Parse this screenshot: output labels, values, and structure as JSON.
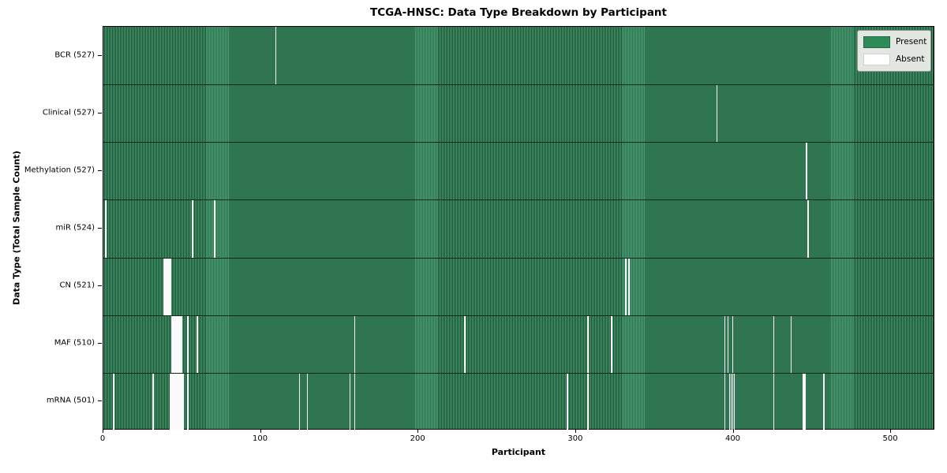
{
  "title": "TCGA-HNSC: Data Type Breakdown by Participant",
  "xlabel": "Participant",
  "ylabel": "Data Type (Total Sample Count)",
  "legend": {
    "present_label": "Present",
    "absent_label": "Absent"
  },
  "colors": {
    "present": "#2E8B57",
    "present_stripe_light": "#4A9A71",
    "present_stripe_dark": "#175031",
    "absent": "#FBFBFB",
    "row_separator": "#0B2A1A",
    "legend_bg": "#E2E7E1",
    "legend_border": "#8F948F",
    "axis": "#000000"
  },
  "chart_data": {
    "type": "heatmap",
    "title": "TCGA-HNSC: Data Type Breakdown by Participant",
    "xlabel": "Participant",
    "ylabel": "Data Type (Total Sample Count)",
    "legend_entries": [
      "Present",
      "Absent"
    ],
    "legend_position": "upper right",
    "grid": false,
    "n_participants": 528,
    "x_range": [
      0,
      528
    ],
    "x_ticks": [
      0,
      100,
      200,
      300,
      400,
      500
    ],
    "rows": [
      {
        "data_type": "BCR",
        "label": "BCR (527)",
        "sample_count": 527,
        "absent_participants": [
          109
        ]
      },
      {
        "data_type": "Clinical",
        "label": "Clinical (527)",
        "sample_count": 527,
        "absent_participants": [
          389
        ]
      },
      {
        "data_type": "Methylation",
        "label": "Methylation (527)",
        "sample_count": 527,
        "absent_participants": [
          446
        ]
      },
      {
        "data_type": "miR",
        "label": "miR (524)",
        "sample_count": 524,
        "absent_participants": [
          1,
          56,
          70,
          447
        ]
      },
      {
        "data_type": "CN",
        "label": "CN (521)",
        "sample_count": 521,
        "absent_participants": [
          38,
          39,
          40,
          41,
          42,
          331,
          333
        ]
      },
      {
        "data_type": "MAF",
        "label": "MAF (510)",
        "sample_count": 510,
        "absent_participants": [
          43,
          44,
          45,
          46,
          47,
          48,
          49,
          53,
          59,
          159,
          229,
          307,
          322,
          394,
          396,
          399,
          425,
          436
        ]
      },
      {
        "data_type": "mRNA",
        "label": "mRNA (501)",
        "sample_count": 501,
        "absent_participants": [
          6,
          31,
          42,
          43,
          44,
          45,
          46,
          47,
          48,
          49,
          50,
          53,
          124,
          129,
          156,
          159,
          294,
          307,
          394,
          397,
          398,
          399,
          400,
          425,
          444,
          445,
          457
        ]
      }
    ]
  }
}
